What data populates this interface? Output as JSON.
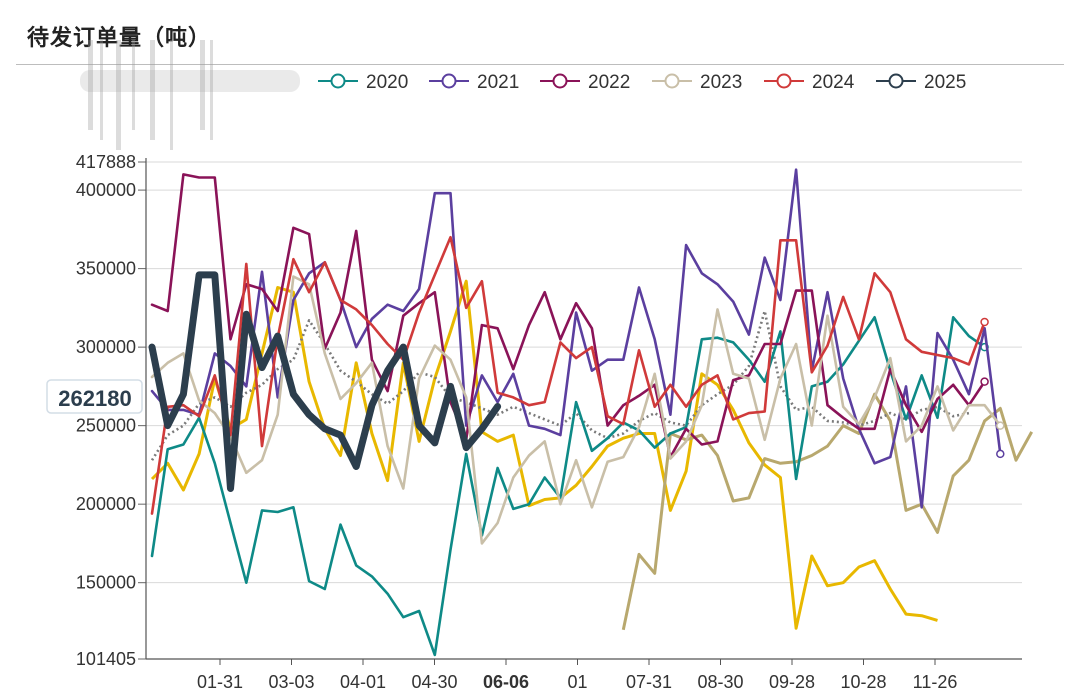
{
  "title": "待发订单量（吨）",
  "chart_data": {
    "type": "line",
    "ylim": [
      101405,
      417888
    ],
    "y_ticks": [
      "417888",
      "400000",
      "350000",
      "300000",
      "250000",
      "200000",
      "150000",
      "101405"
    ],
    "x_ticks": [
      "01-31",
      "03-03",
      "04-01",
      "04-30",
      "06-06",
      "01",
      "07-31",
      "08-30",
      "09-28",
      "10-28",
      "11-26"
    ],
    "current_value_label": "262180",
    "grid": "horizontal",
    "legend_position": "top",
    "series": [
      {
        "name": "2020",
        "color": "#0e8a87",
        "values": [
          167000,
          235000,
          238000,
          255000,
          226000,
          188000,
          150000,
          196000,
          195000,
          198000,
          151000,
          146000,
          187000,
          161000,
          154000,
          143000,
          128000,
          132000,
          104000,
          171000,
          232000,
          180000,
          223000,
          197000,
          200000,
          217000,
          204000,
          265000,
          234000,
          242000,
          252000,
          247000,
          236000,
          245000,
          249000,
          305000,
          306000,
          303000,
          292000,
          278000,
          310000,
          216000,
          275000,
          278000,
          289000,
          304000,
          319000,
          285000,
          254000,
          282000,
          255000,
          319000,
          307000,
          300000
        ]
      },
      {
        "name": "2021",
        "color": "#5b3f9f",
        "values": [
          272000,
          260000,
          260000,
          257000,
          296000,
          288000,
          275000,
          348000,
          268000,
          330000,
          347000,
          354000,
          330000,
          300000,
          318000,
          327000,
          323000,
          337000,
          398000,
          398000,
          250000,
          282000,
          265000,
          283000,
          250000,
          248000,
          244000,
          322000,
          285000,
          292000,
          292000,
          338000,
          305000,
          257000,
          365000,
          347000,
          340000,
          329000,
          308000,
          357000,
          330000,
          413000,
          285000,
          335000,
          280000,
          248000,
          226000,
          230000,
          275000,
          198000,
          309000,
          292000,
          270000,
          312000,
          232000
        ]
      },
      {
        "name": "2022",
        "color": "#8a1358",
        "values": [
          327000,
          323000,
          410000,
          408000,
          408000,
          305000,
          340000,
          337000,
          323000,
          376000,
          372000,
          299000,
          322000,
          374000,
          292000,
          272000,
          320000,
          328000,
          335000,
          265000,
          241000,
          314000,
          312000,
          286000,
          314000,
          335000,
          305000,
          328000,
          312000,
          250000,
          263000,
          269000,
          276000,
          230000,
          248000,
          238000,
          240000,
          279000,
          282000,
          302000,
          302000,
          336000,
          336000,
          263000,
          255000,
          248000,
          248000,
          286000,
          263000,
          246000,
          267000,
          276000,
          263000,
          278000
        ]
      },
      {
        "name": "2023",
        "color": "#c9bfa8",
        "values": [
          281000,
          290000,
          296000,
          266000,
          258000,
          243000,
          220000,
          228000,
          257000,
          345000,
          340000,
          296000,
          267000,
          277000,
          290000,
          237000,
          210000,
          280000,
          301000,
          292000,
          268000,
          175000,
          188000,
          217000,
          231000,
          240000,
          200000,
          228000,
          198000,
          227000,
          230000,
          249000,
          283000,
          229000,
          240000,
          263000,
          324000,
          283000,
          280000,
          241000,
          280000,
          302000,
          250000,
          320000,
          262000,
          251000,
          268000,
          293000,
          240000,
          250000,
          275000,
          247000,
          263000,
          263000,
          250000
        ]
      },
      {
        "name": "2024",
        "color": "#d03a3a",
        "values": [
          194000,
          262000,
          263000,
          256000,
          282000,
          244000,
          353000,
          237000,
          306000,
          356000,
          335000,
          354000,
          330000,
          324000,
          314000,
          302000,
          292000,
          322000,
          346000,
          370000,
          325000,
          342000,
          271000,
          268000,
          263000,
          265000,
          303000,
          293000,
          300000,
          256000,
          251000,
          298000,
          262000,
          276000,
          262000,
          276000,
          282000,
          254000,
          258000,
          259000,
          368000,
          368000,
          284000,
          301000,
          332000,
          305000,
          347000,
          335000,
          305000,
          297000,
          295000,
          293000,
          289000,
          316000
        ]
      },
      {
        "name": "2025",
        "color": "#2c3e4d",
        "values": [
          300000,
          250000,
          270000,
          346000,
          346000,
          210000,
          321000,
          287000,
          307000,
          270000,
          257000,
          248000,
          244000,
          224000,
          263000,
          285000,
          300000,
          250000,
          239000,
          275000,
          236000,
          248000,
          262180
        ]
      }
    ],
    "extra_series": [
      {
        "name": "",
        "color": "#e8b800",
        "values": [
          216000,
          226000,
          209000,
          232000,
          280000,
          248000,
          254000,
          296000,
          338000,
          335000,
          278000,
          248000,
          231000,
          290000,
          245000,
          215000,
          290000,
          240000,
          280000,
          310000,
          342000,
          246000,
          240000,
          244000,
          199000,
          203000,
          204000,
          212000,
          224000,
          237000,
          242000,
          245000,
          245000,
          196000,
          221000,
          283000,
          276000,
          260000,
          239000,
          225000,
          217000,
          121000,
          167000,
          148000,
          150000,
          160000,
          164000,
          146000,
          130000,
          129000,
          126000
        ]
      },
      {
        "name": "",
        "color": "#b8a86e",
        "values": [
          120000,
          168000,
          156000,
          245000,
          241000,
          244000,
          231000,
          202000,
          204000,
          229000,
          226000,
          227000,
          231000,
          237000,
          250000,
          245000,
          270000,
          253000,
          196000,
          200000,
          182000,
          218000,
          228000,
          253000,
          261000,
          228000,
          246000
        ]
      },
      {
        "name": "",
        "color": "#7a7a7a",
        "values": [
          228000,
          244000,
          250000,
          264000,
          268000,
          262000,
          271000,
          276000,
          286000,
          292000,
          317000,
          302000,
          285000,
          278000,
          270000,
          264000,
          272000,
          284000,
          281000,
          268000,
          265000,
          261000,
          257000,
          262000,
          258000,
          254000,
          250000,
          258000,
          247000,
          242000,
          245000,
          253000,
          258000,
          252000,
          250000,
          263000,
          270000,
          276000,
          288000,
          323000,
          275000,
          260000,
          262000,
          253000,
          252000,
          250000,
          253000,
          258000,
          254000,
          260000,
          262000,
          256000,
          258000
        ]
      }
    ]
  }
}
